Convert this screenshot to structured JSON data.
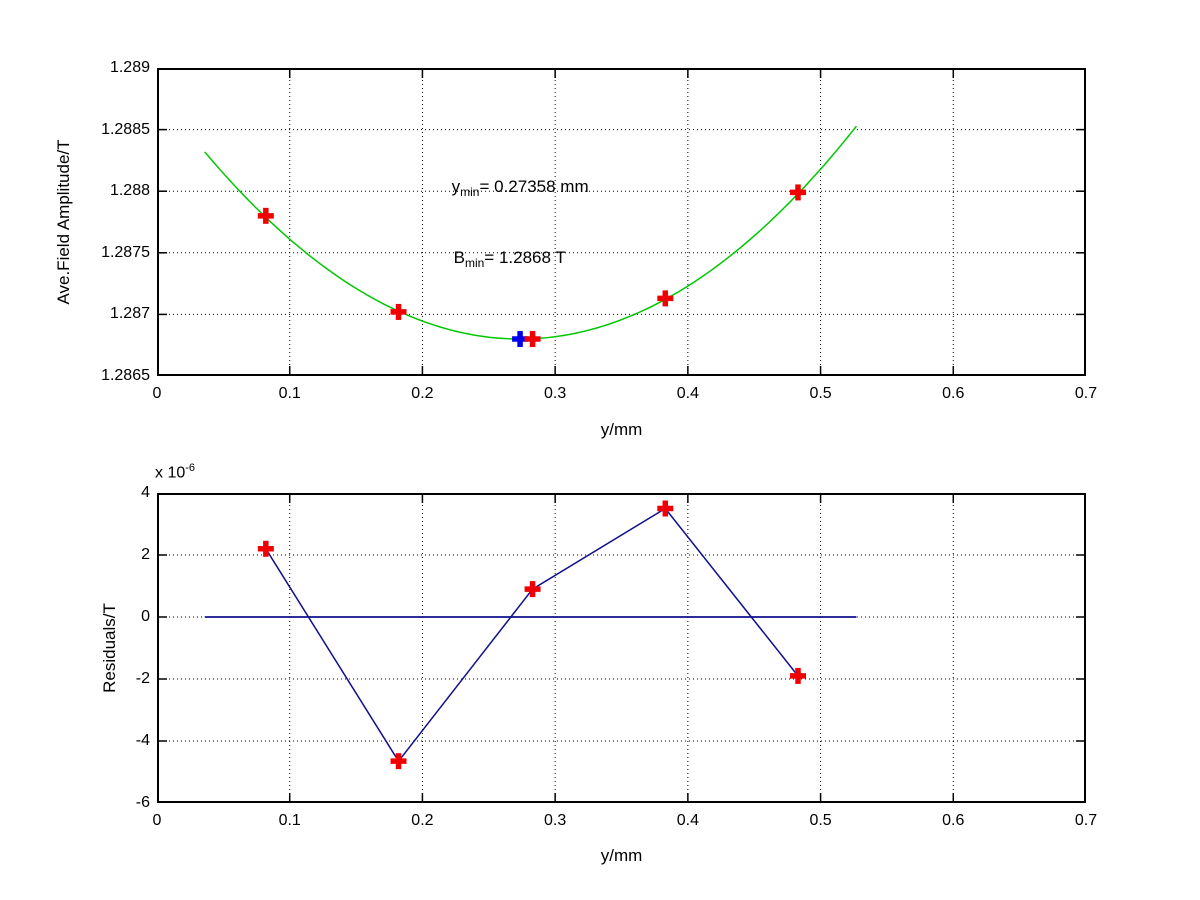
{
  "figure": {
    "background": "#ffffff",
    "axes_line_color": "#000000",
    "grid_color": "#000000"
  },
  "chart_data": [
    {
      "type": "scatter",
      "title": "",
      "xlabel": "y/mm",
      "ylabel": "Ave.Field Amplitude/T",
      "xlim": [
        0,
        0.7
      ],
      "ylim": [
        1.2865,
        1.289
      ],
      "grid": true,
      "legend": "none",
      "xticks": [
        0,
        0.1,
        0.2,
        0.3,
        0.4,
        0.5,
        0.6,
        0.7
      ],
      "xtick_labels": [
        "0",
        "0.1",
        "0.2",
        "0.3",
        "0.4",
        "0.5",
        "0.6",
        "0.7"
      ],
      "yticks": [
        1.2865,
        1.287,
        1.2875,
        1.288,
        1.2885,
        1.289
      ],
      "ytick_labels": [
        "1.2865",
        "1.287",
        "1.2875",
        "1.288",
        "1.2885",
        "1.289"
      ],
      "points": [
        [
          0.082,
          1.2878
        ],
        [
          0.182,
          1.28702
        ],
        [
          0.283,
          1.2868
        ],
        [
          0.383,
          1.28713
        ],
        [
          0.483,
          1.28799
        ]
      ],
      "min_point": [
        0.27358,
        1.2868
      ],
      "fit_curve": {
        "type": "parabola",
        "bmin": 1.2868,
        "ymin": 0.27358,
        "a": 0.0269,
        "x_range": [
          0.036,
          0.527
        ]
      },
      "annotations": {
        "ymin": {
          "base": "y",
          "sub": "min",
          "rest": "= 0.27358 mm",
          "x": 0.222,
          "y": 1.28803
        },
        "bmin": {
          "base": "B",
          "sub": "min",
          "rest": "= 1.2868 T",
          "x": 0.2235,
          "y": 1.28745
        }
      },
      "colors": {
        "curve": "#00c800",
        "marker": "#f00000",
        "min_marker": "#0000ee"
      }
    },
    {
      "type": "line",
      "title": "",
      "xlabel": "y/mm",
      "ylabel": "Residuals/T",
      "scale_label": {
        "base": "x 10",
        "exp": "-6"
      },
      "xlim": [
        0,
        0.7
      ],
      "ylim": [
        -6,
        4
      ],
      "grid": true,
      "legend": "none",
      "xticks": [
        0,
        0.1,
        0.2,
        0.3,
        0.4,
        0.5,
        0.6,
        0.7
      ],
      "xtick_labels": [
        "0",
        "0.1",
        "0.2",
        "0.3",
        "0.4",
        "0.5",
        "0.6",
        "0.7"
      ],
      "yticks": [
        -6,
        -4,
        -2,
        0,
        2,
        4
      ],
      "ytick_labels": [
        "-6",
        "-4",
        "-2",
        "0",
        "2",
        "4"
      ],
      "points": [
        [
          0.082,
          2.2
        ],
        [
          0.182,
          -4.65
        ],
        [
          0.283,
          0.9
        ],
        [
          0.383,
          3.5
        ],
        [
          0.483,
          -1.9
        ]
      ],
      "connect": true,
      "zero_line": {
        "y": 0,
        "x_range": [
          0.036,
          0.527
        ]
      },
      "colors": {
        "line": "#10108c",
        "zero_line": "#10108c",
        "marker": "#f00000"
      }
    }
  ]
}
